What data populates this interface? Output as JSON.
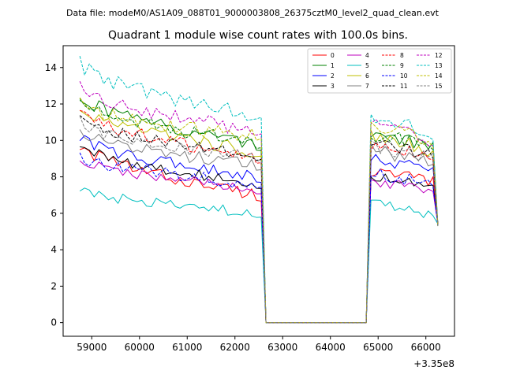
{
  "chart_data": {
    "type": "line",
    "suptitle": "Data file: modeM0/AS1A09_088T01_9000003808_26375cztM0_level2_quad_clean.evt",
    "title": "Quadrant 1 module wise count rates with 100.0s bins.",
    "xlabel": "",
    "ylabel": "",
    "x_offset_label": "+3.35e8",
    "xlim": [
      58400,
      66600
    ],
    "ylim": [
      -0.75,
      15.2
    ],
    "x_ticks": [
      59000,
      60000,
      61000,
      62000,
      63000,
      64000,
      65000,
      66000
    ],
    "x_tick_labels": [
      "59000",
      "60000",
      "61000",
      "62000",
      "63000",
      "64000",
      "65000",
      "66000"
    ],
    "y_ticks": [
      0,
      2,
      4,
      6,
      8,
      10,
      12,
      14
    ],
    "y_tick_labels": [
      "0",
      "2",
      "4",
      "6",
      "8",
      "10",
      "12",
      "14"
    ],
    "grid": false,
    "legend_position": "top-right",
    "segments": [
      {
        "x0": 58750,
        "n": 39,
        "step": 100
      },
      {
        "x0": 62650,
        "n": 22,
        "step": 100
      },
      {
        "x0": 64850,
        "n": 15,
        "step": 100
      }
    ],
    "series": [
      {
        "name": "0",
        "color": "#ff0000",
        "dash": "solid",
        "start": 9.8,
        "end": 7.0,
        "high": 8.3,
        "high_end": 7.7,
        "amp": 0.35
      },
      {
        "name": "1",
        "color": "#008000",
        "dash": "solid",
        "start": 12.5,
        "end": 9.8,
        "high": 10.4,
        "high_end": 9.6,
        "amp": 0.4
      },
      {
        "name": "2",
        "color": "#0000ff",
        "dash": "solid",
        "start": 10.2,
        "end": 8.0,
        "high": 9.0,
        "high_end": 8.3,
        "amp": 0.35
      },
      {
        "name": "3",
        "color": "#000000",
        "dash": "solid",
        "start": 9.8,
        "end": 7.6,
        "high": 8.0,
        "high_end": 7.4,
        "amp": 0.3
      },
      {
        "name": "4",
        "color": "#bf00bf",
        "dash": "solid",
        "start": 9.0,
        "end": 7.3,
        "high": 7.8,
        "high_end": 7.1,
        "amp": 0.3
      },
      {
        "name": "5",
        "color": "#00bfbf",
        "dash": "solid",
        "start": 7.3,
        "end": 6.0,
        "high": 6.6,
        "high_end": 5.8,
        "amp": 0.3
      },
      {
        "name": "6",
        "color": "#bfbf00",
        "dash": "solid",
        "start": 11.7,
        "end": 9.4,
        "high": 10.3,
        "high_end": 9.4,
        "amp": 0.4
      },
      {
        "name": "7",
        "color": "#808080",
        "dash": "solid",
        "start": 10.6,
        "end": 8.6,
        "high": 9.5,
        "high_end": 8.7,
        "amp": 0.35
      },
      {
        "name": "8",
        "color": "#ff0000",
        "dash": "dashed",
        "start": 11.6,
        "end": 9.0,
        "high": 9.8,
        "high_end": 9.0,
        "amp": 0.4
      },
      {
        "name": "9",
        "color": "#008000",
        "dash": "dashed",
        "start": 12.2,
        "end": 9.8,
        "high": 10.4,
        "high_end": 9.6,
        "amp": 0.4
      },
      {
        "name": "10",
        "color": "#0000ff",
        "dash": "dashed",
        "start": 9.2,
        "end": 7.6,
        "high": 8.2,
        "high_end": 7.6,
        "amp": 0.35
      },
      {
        "name": "11",
        "color": "#000000",
        "dash": "dashed",
        "start": 11.2,
        "end": 9.1,
        "high": 9.8,
        "high_end": 9.2,
        "amp": 0.35
      },
      {
        "name": "12",
        "color": "#bf00bf",
        "dash": "dashed",
        "start": 13.0,
        "end": 10.5,
        "high": 10.9,
        "high_end": 10.0,
        "amp": 0.4
      },
      {
        "name": "13",
        "color": "#00bfbf",
        "dash": "dashed",
        "start": 14.3,
        "end": 11.4,
        "high": 11.3,
        "high_end": 10.4,
        "amp": 0.45
      },
      {
        "name": "14",
        "color": "#bfbf00",
        "dash": "dashed",
        "start": 12.0,
        "end": 10.2,
        "high": 10.8,
        "high_end": 10.0,
        "amp": 0.4
      },
      {
        "name": "15",
        "color": "#808080",
        "dash": "dashed",
        "start": 11.0,
        "end": 9.0,
        "high": 9.7,
        "high_end": 9.0,
        "amp": 0.35
      }
    ]
  }
}
